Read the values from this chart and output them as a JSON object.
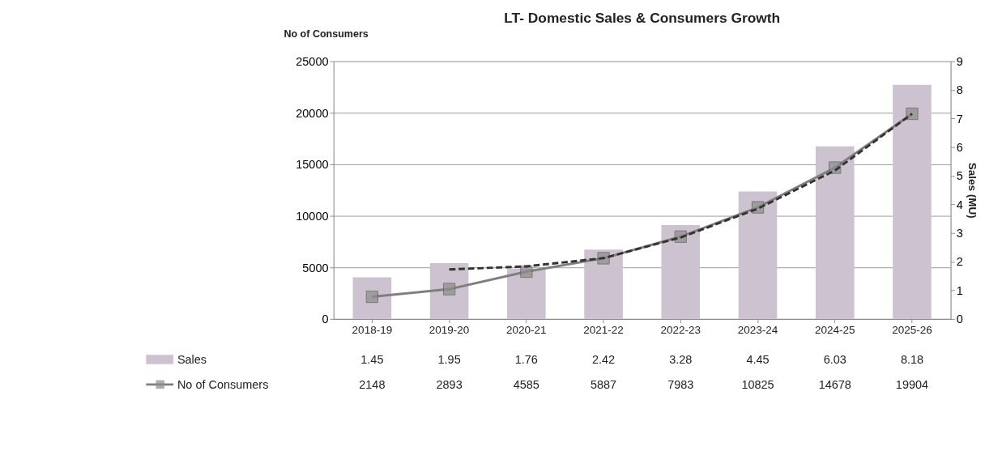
{
  "chart_data": {
    "type": "bar",
    "title": "LT- Domestic Sales & Consumers Growth",
    "ylabel": "No of Consumers",
    "y2label": "Sales (MU)",
    "categories": [
      "2018-19",
      "2019-20",
      "2020-21",
      "2021-22",
      "2022-23",
      "2023-24",
      "2024-25",
      "2025-26"
    ],
    "series": [
      {
        "name": "Sales",
        "axis": "y2",
        "color": "#cdc3d0",
        "values": [
          1.45,
          1.95,
          1.76,
          2.42,
          3.28,
          4.45,
          6.03,
          8.18
        ],
        "value_labels": [
          "1.45",
          "1.95",
          "1.76",
          "2.42",
          "3.28",
          "4.45",
          "6.03",
          "8.18"
        ]
      },
      {
        "name": "No of Consumers",
        "type": "line",
        "axis": "y",
        "color": "#7f7f7f",
        "marker": "square",
        "line_style": "solid",
        "values": [
          2148,
          2893,
          4585,
          5887,
          7983,
          10825,
          14678,
          19904
        ],
        "value_labels": [
          "2148",
          "2893",
          "4585",
          "5887",
          "7983",
          "10825",
          "14678",
          "19904"
        ]
      },
      {
        "type": "line",
        "axis": "y",
        "color": "#333333",
        "marker": "none",
        "line_style": "dashed",
        "values": [
          null,
          4800,
          5100,
          5900,
          7900,
          10700,
          14400,
          19900
        ]
      }
    ],
    "ylim": [
      0,
      25000
    ],
    "yticks": [
      0,
      5000,
      10000,
      15000,
      20000,
      25000
    ],
    "y2lim": [
      0,
      9
    ],
    "y2ticks": [
      0,
      1,
      2,
      3,
      4,
      5,
      6,
      7,
      8,
      9
    ],
    "grid": "y",
    "legend": "bottom"
  }
}
